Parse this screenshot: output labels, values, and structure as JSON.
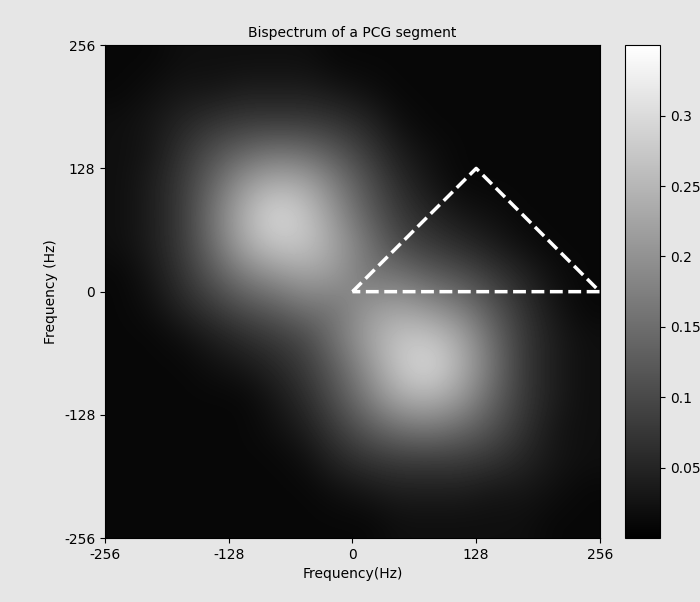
{
  "chart_data": {
    "type": "heatmap",
    "title": "Bispectrum of a PCG segment",
    "x_label": "Frequency(Hz)",
    "y_label": "Frequency (Hz)",
    "xlim": [
      -256,
      256
    ],
    "ylim": [
      -256,
      256
    ],
    "xticks": [
      -256,
      -128,
      0,
      128,
      256
    ],
    "yticks": [
      -256,
      -128,
      0,
      128,
      256
    ],
    "cells": [
      [
        0.01,
        0.01,
        0.01,
        0.01,
        0.01,
        0.01,
        0.01,
        0.01,
        0.01,
        0.02,
        0.02,
        0.02,
        0.02,
        0.02,
        0.01,
        0.01
      ],
      [
        0.01,
        0.01,
        0.01,
        0.01,
        0.01,
        0.01,
        0.01,
        0.02,
        0.03,
        0.04,
        0.04,
        0.04,
        0.03,
        0.03,
        0.02,
        0.01
      ],
      [
        0.01,
        0.01,
        0.01,
        0.01,
        0.01,
        0.01,
        0.02,
        0.05,
        0.07,
        0.08,
        0.08,
        0.08,
        0.07,
        0.05,
        0.03,
        0.02
      ],
      [
        0.01,
        0.01,
        0.01,
        0.01,
        0.01,
        0.02,
        0.04,
        0.08,
        0.12,
        0.15,
        0.16,
        0.14,
        0.11,
        0.07,
        0.03,
        0.02
      ],
      [
        0.01,
        0.01,
        0.01,
        0.01,
        0.01,
        0.03,
        0.06,
        0.11,
        0.17,
        0.23,
        0.24,
        0.21,
        0.14,
        0.08,
        0.04,
        0.02
      ],
      [
        0.01,
        0.01,
        0.01,
        0.02,
        0.03,
        0.05,
        0.08,
        0.13,
        0.2,
        0.27,
        0.3,
        0.24,
        0.16,
        0.08,
        0.04,
        0.02
      ],
      [
        0.01,
        0.01,
        0.02,
        0.04,
        0.06,
        0.08,
        0.1,
        0.16,
        0.22,
        0.27,
        0.27,
        0.23,
        0.15,
        0.08,
        0.04,
        0.02
      ],
      [
        0.01,
        0.02,
        0.05,
        0.08,
        0.11,
        0.13,
        0.16,
        0.16,
        0.21,
        0.22,
        0.2,
        0.17,
        0.12,
        0.07,
        0.03,
        0.01
      ],
      [
        0.01,
        0.03,
        0.07,
        0.12,
        0.17,
        0.2,
        0.22,
        0.21,
        0.16,
        0.16,
        0.13,
        0.11,
        0.08,
        0.05,
        0.02,
        0.01
      ],
      [
        0.02,
        0.04,
        0.08,
        0.15,
        0.23,
        0.27,
        0.27,
        0.22,
        0.16,
        0.1,
        0.08,
        0.06,
        0.04,
        0.02,
        0.01,
        0.01
      ],
      [
        0.02,
        0.04,
        0.08,
        0.16,
        0.24,
        0.3,
        0.27,
        0.2,
        0.13,
        0.08,
        0.05,
        0.03,
        0.02,
        0.01,
        0.01,
        0.01
      ],
      [
        0.02,
        0.04,
        0.08,
        0.14,
        0.21,
        0.24,
        0.23,
        0.17,
        0.11,
        0.06,
        0.03,
        0.01,
        0.01,
        0.01,
        0.01,
        0.01
      ],
      [
        0.02,
        0.03,
        0.07,
        0.11,
        0.14,
        0.16,
        0.15,
        0.12,
        0.08,
        0.04,
        0.02,
        0.01,
        0.01,
        0.01,
        0.01,
        0.01
      ],
      [
        0.02,
        0.03,
        0.05,
        0.07,
        0.08,
        0.08,
        0.08,
        0.07,
        0.05,
        0.02,
        0.01,
        0.01,
        0.01,
        0.01,
        0.01,
        0.01
      ],
      [
        0.01,
        0.02,
        0.03,
        0.03,
        0.04,
        0.04,
        0.04,
        0.03,
        0.02,
        0.01,
        0.01,
        0.01,
        0.01,
        0.01,
        0.01,
        0.01
      ],
      [
        0.01,
        0.01,
        0.02,
        0.02,
        0.02,
        0.02,
        0.02,
        0.01,
        0.01,
        0.01,
        0.01,
        0.01,
        0.01,
        0.01,
        0.01,
        0.01
      ]
    ],
    "colorbar": {
      "range": [
        0,
        0.35
      ],
      "ticks": [
        0.05,
        0.1,
        0.15,
        0.2,
        0.25,
        0.3
      ]
    },
    "region": {
      "x": [
        0,
        128,
        256,
        0
      ],
      "y": [
        0,
        128,
        0,
        0
      ],
      "color": "#ffffff",
      "line_style": "dashed"
    }
  }
}
